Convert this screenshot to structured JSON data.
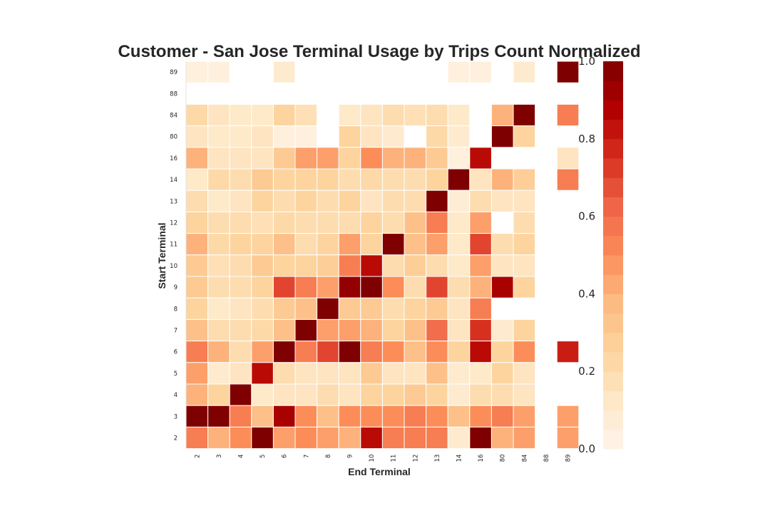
{
  "chart_data": {
    "type": "heatmap",
    "title": "Customer - San Jose Terminal Usage by Trips Count Normalized",
    "xlabel": "End Terminal",
    "ylabel": "Start Terminal",
    "x_categories": [
      "2",
      "3",
      "4",
      "5",
      "6",
      "7",
      "8",
      "9",
      "10",
      "11",
      "12",
      "13",
      "14",
      "16",
      "80",
      "84",
      "88",
      "89"
    ],
    "y_categories": [
      "89",
      "88",
      "84",
      "80",
      "16",
      "14",
      "13",
      "12",
      "11",
      "10",
      "9",
      "8",
      "7",
      "6",
      "5",
      "4",
      "3",
      "2"
    ],
    "values": [
      [
        0.05,
        0.05,
        null,
        null,
        0.1,
        null,
        null,
        null,
        null,
        null,
        null,
        null,
        0.05,
        0.05,
        null,
        0.1,
        null,
        1.0
      ],
      [
        null,
        null,
        null,
        null,
        null,
        null,
        null,
        null,
        null,
        null,
        null,
        null,
        null,
        null,
        null,
        null,
        null,
        null
      ],
      [
        0.22,
        0.15,
        0.12,
        0.12,
        0.25,
        0.18,
        null,
        0.12,
        0.15,
        0.2,
        0.18,
        0.2,
        0.12,
        null,
        0.4,
        1.0,
        null,
        0.55
      ],
      [
        0.15,
        0.12,
        0.12,
        0.15,
        0.05,
        0.05,
        null,
        0.25,
        0.15,
        0.1,
        null,
        0.22,
        0.1,
        null,
        1.0,
        0.25,
        null,
        null
      ],
      [
        0.4,
        0.15,
        0.15,
        0.15,
        0.3,
        0.45,
        0.45,
        0.25,
        0.5,
        0.4,
        0.4,
        0.3,
        0.05,
        0.85,
        null,
        null,
        null,
        0.15
      ],
      [
        0.12,
        0.22,
        0.2,
        0.3,
        0.25,
        0.25,
        0.25,
        0.2,
        0.22,
        0.2,
        0.2,
        0.25,
        1.0,
        0.15,
        0.4,
        0.28,
        null,
        0.55
      ],
      [
        0.2,
        0.12,
        0.15,
        0.25,
        0.2,
        0.25,
        0.2,
        0.25,
        0.15,
        0.2,
        0.2,
        1.0,
        0.08,
        0.2,
        0.15,
        0.15,
        null,
        null
      ],
      [
        0.25,
        0.2,
        0.2,
        0.18,
        0.22,
        0.2,
        0.2,
        0.2,
        0.25,
        0.2,
        0.35,
        0.55,
        0.12,
        0.45,
        null,
        0.2,
        null,
        null
      ],
      [
        0.4,
        0.22,
        0.25,
        0.25,
        0.35,
        0.2,
        0.25,
        0.45,
        0.25,
        1.0,
        0.35,
        0.45,
        0.12,
        0.7,
        0.2,
        0.25,
        null,
        null
      ],
      [
        0.3,
        0.18,
        0.2,
        0.3,
        0.25,
        0.25,
        0.28,
        0.55,
        0.85,
        0.2,
        0.28,
        0.2,
        0.12,
        0.45,
        0.15,
        0.15,
        null,
        null
      ],
      [
        0.3,
        0.2,
        0.2,
        0.25,
        0.7,
        0.55,
        0.45,
        0.95,
        1.0,
        0.5,
        0.2,
        0.7,
        0.2,
        0.4,
        0.9,
        0.25,
        null,
        null
      ],
      [
        0.25,
        0.12,
        0.15,
        0.2,
        0.3,
        0.35,
        1.0,
        0.3,
        0.3,
        0.2,
        0.25,
        0.3,
        0.15,
        0.55,
        null,
        null,
        null,
        null
      ],
      [
        0.35,
        0.2,
        0.2,
        0.22,
        0.35,
        1.0,
        0.45,
        0.45,
        0.4,
        0.25,
        0.35,
        0.6,
        0.15,
        0.75,
        0.1,
        0.25,
        null,
        null
      ],
      [
        0.55,
        0.4,
        0.2,
        0.45,
        1.0,
        0.55,
        0.7,
        1.0,
        0.55,
        0.5,
        0.35,
        0.5,
        0.25,
        0.85,
        0.25,
        0.5,
        null,
        0.8
      ],
      [
        0.45,
        0.1,
        0.15,
        0.85,
        0.2,
        0.15,
        0.15,
        0.15,
        0.3,
        0.15,
        0.15,
        0.35,
        0.1,
        0.12,
        0.25,
        0.15,
        null,
        null
      ],
      [
        0.4,
        0.25,
        1.0,
        0.12,
        0.15,
        0.15,
        0.2,
        0.15,
        0.25,
        0.25,
        0.3,
        0.25,
        0.1,
        0.2,
        0.2,
        0.15,
        null,
        null
      ],
      [
        1.0,
        1.0,
        0.55,
        0.35,
        0.9,
        0.5,
        0.35,
        0.5,
        0.5,
        0.5,
        0.55,
        0.5,
        0.35,
        0.5,
        0.55,
        0.45,
        null,
        0.45
      ],
      [
        0.55,
        0.4,
        0.5,
        1.0,
        0.45,
        0.5,
        0.45,
        0.4,
        0.85,
        0.55,
        0.55,
        0.55,
        0.1,
        1.0,
        0.4,
        0.45,
        null,
        0.45
      ]
    ],
    "vmin": 0.0,
    "vmax": 1.0,
    "colorbar_ticks": [
      "0.0",
      "0.2",
      "0.4",
      "0.6",
      "0.8",
      "1.0"
    ],
    "colormap_colors": [
      "#fff5eb",
      "#fee8c8",
      "#fdd49e",
      "#fdbb84",
      "#fc8d59",
      "#ef6548",
      "#d7301f",
      "#b30000",
      "#7f0000"
    ],
    "grid": false
  }
}
